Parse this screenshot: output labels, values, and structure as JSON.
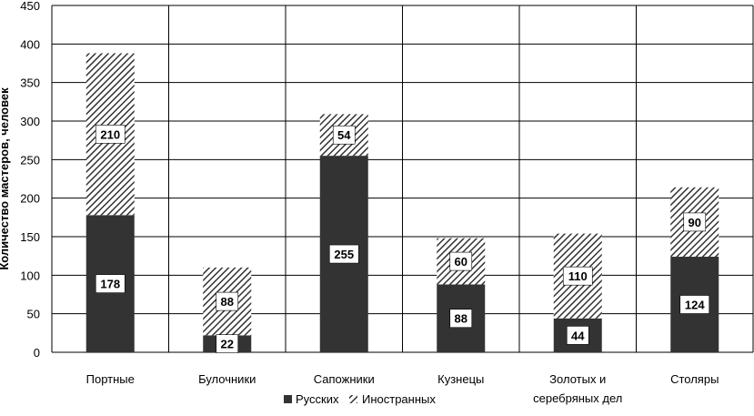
{
  "chart_data": {
    "type": "bar",
    "stacked": true,
    "title": "",
    "xlabel": "",
    "ylabel": "Количество мастеров, человек",
    "ylim": [
      0,
      450
    ],
    "yticks": [
      0,
      50,
      100,
      150,
      200,
      250,
      300,
      350,
      400,
      450
    ],
    "grid": true,
    "categories": [
      [
        "Портные"
      ],
      [
        "Булочники"
      ],
      [
        "Сапожники"
      ],
      [
        "Кузнецы"
      ],
      [
        "Золотых и",
        "серебряных дел"
      ],
      [
        "Столяры"
      ]
    ],
    "series": [
      {
        "name": "Русских",
        "pattern": "solid",
        "color": "#333333",
        "values": [
          178,
          22,
          255,
          88,
          44,
          124
        ]
      },
      {
        "name": "Иностранных",
        "pattern": "hatch",
        "color": "#333333",
        "values": [
          210,
          88,
          54,
          60,
          110,
          90
        ]
      }
    ],
    "legend": "bottom-center"
  }
}
